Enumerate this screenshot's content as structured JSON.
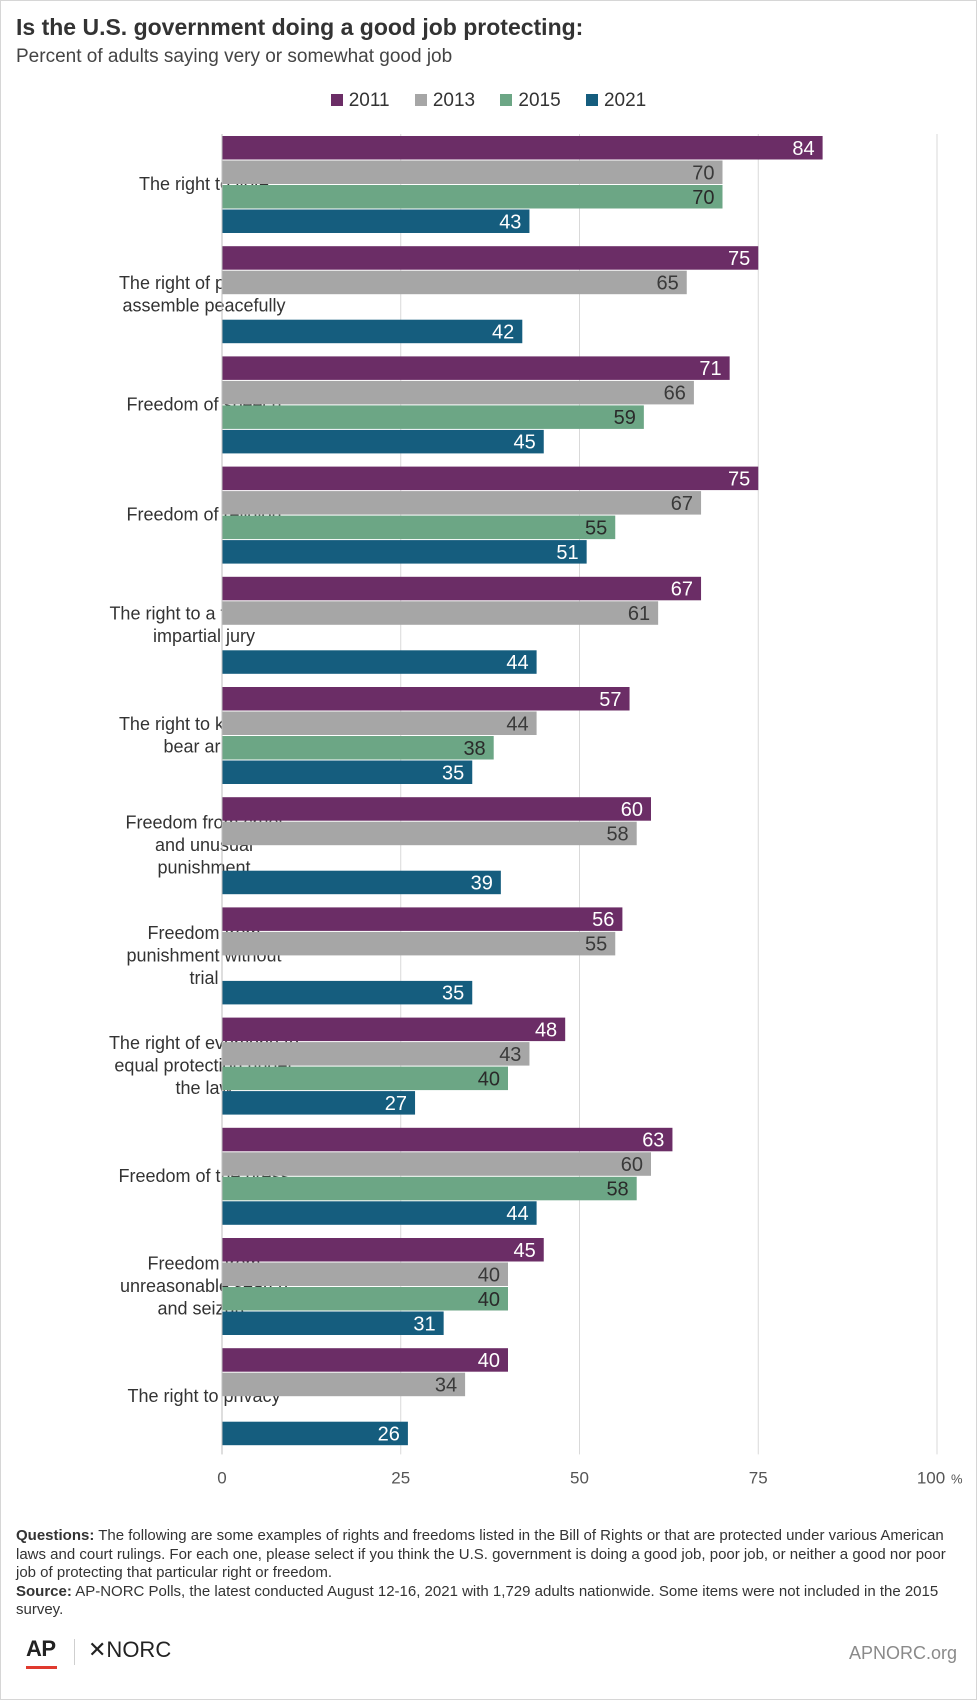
{
  "title": "Is the U.S. government doing a good job protecting:",
  "subtitle": "Percent of adults saying very or somewhat good job",
  "legend": [
    {
      "label": "2011",
      "color": "#6b2d66"
    },
    {
      "label": "2013",
      "color": "#a6a6a6"
    },
    {
      "label": "2015",
      "color": "#6ca685"
    },
    {
      "label": "2021",
      "color": "#155d7e"
    }
  ],
  "chart_data": {
    "type": "bar",
    "orientation": "horizontal",
    "xlim": [
      0,
      100
    ],
    "x_ticks": [
      "0",
      "25",
      "50",
      "75",
      "100"
    ],
    "x_unit": "%",
    "grid": "vertical gridlines",
    "legend_position": "top-center",
    "categories": [
      [
        "The right to vote"
      ],
      [
        "The right of people to",
        "assemble peacefully"
      ],
      [
        "Freedom of speech"
      ],
      [
        "Freedom of religion"
      ],
      [
        "The right to a trial by an",
        "impartial jury"
      ],
      [
        "The right to keep and",
        "bear arms"
      ],
      [
        "Freedom from cruel",
        "and unusual",
        "punishment"
      ],
      [
        "Freedom from",
        "punishment without",
        "trial"
      ],
      [
        "The right of everyone to",
        "equal protection under",
        "the law"
      ],
      [
        "Freedom of the press"
      ],
      [
        "Freedom from",
        "unreasonable search",
        "and seizure"
      ],
      [
        "The right to privacy"
      ]
    ],
    "series": [
      {
        "name": "2011",
        "color": "#6b2d66",
        "label_color": "#ffffff",
        "values": [
          84,
          75,
          71,
          75,
          67,
          57,
          60,
          56,
          48,
          63,
          45,
          40
        ]
      },
      {
        "name": "2013",
        "color": "#a6a6a6",
        "label_color": "#3a3a3a",
        "values": [
          70,
          65,
          66,
          67,
          61,
          44,
          58,
          55,
          43,
          60,
          40,
          34
        ]
      },
      {
        "name": "2015",
        "color": "#6ca685",
        "label_color": "#2a2a2a",
        "values": [
          70,
          null,
          59,
          55,
          null,
          38,
          null,
          null,
          40,
          58,
          40,
          null
        ]
      },
      {
        "name": "2021",
        "color": "#155d7e",
        "label_color": "#ffffff",
        "values": [
          43,
          42,
          45,
          51,
          44,
          35,
          39,
          35,
          27,
          44,
          31,
          26
        ]
      }
    ]
  },
  "notes": {
    "questions_label": "Questions:",
    "questions_text": " The following are some examples of rights and freedoms listed in the Bill of Rights or that are protected under various American laws and court rulings. For each one, please select if you think the U.S. government is doing a good job, poor job, or neither a good nor poor job of protecting that particular right or freedom.",
    "source_label": "Source:",
    "source_text": " AP-NORC Polls, the latest conducted August 12-16, 2021 with 1,729 adults nationwide. Some items were not included in the 2015 survey."
  },
  "logos": {
    "ap": "AP",
    "norc": "✕NORC"
  },
  "site": "APNORC.org"
}
